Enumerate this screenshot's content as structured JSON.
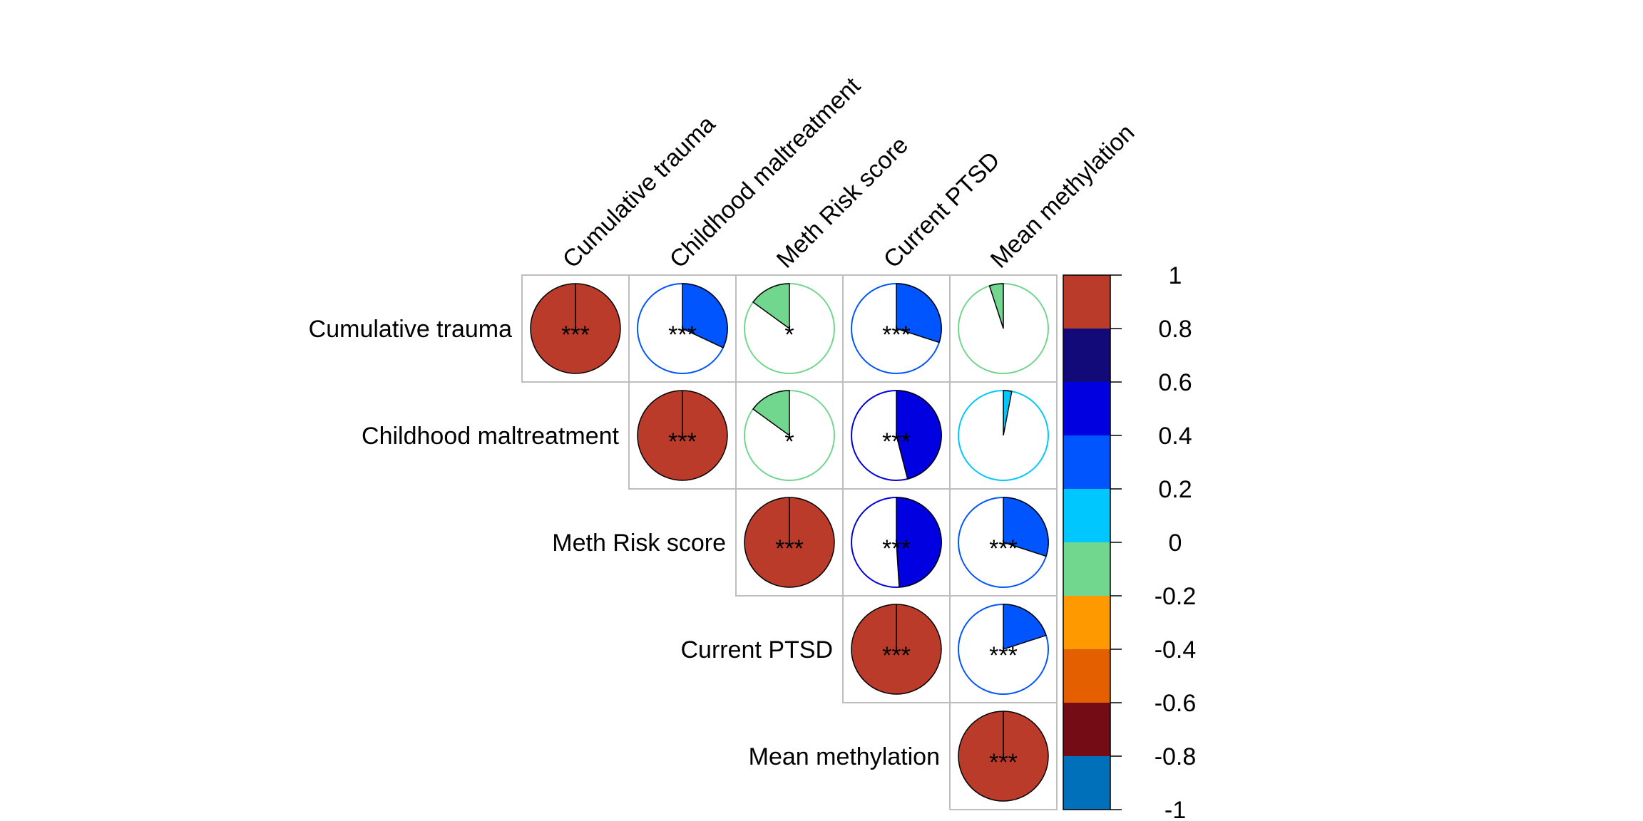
{
  "chart_data": {
    "type": "heatmap",
    "variables": [
      "Cumulative trauma",
      "Childhood maltreatment",
      "Meth Risk score",
      "Current PTSD",
      "Mean methylation"
    ],
    "cells": [
      {
        "row": 0,
        "col": 0,
        "r": 1.0,
        "sig": "***"
      },
      {
        "row": 0,
        "col": 1,
        "r": 0.32,
        "sig": "***"
      },
      {
        "row": 0,
        "col": 2,
        "r": -0.15,
        "sig": "*"
      },
      {
        "row": 0,
        "col": 3,
        "r": 0.3,
        "sig": "***"
      },
      {
        "row": 0,
        "col": 4,
        "r": -0.05,
        "sig": ""
      },
      {
        "row": 1,
        "col": 1,
        "r": 1.0,
        "sig": "***"
      },
      {
        "row": 1,
        "col": 2,
        "r": -0.15,
        "sig": "*"
      },
      {
        "row": 1,
        "col": 3,
        "r": 0.46,
        "sig": "***"
      },
      {
        "row": 1,
        "col": 4,
        "r": 0.03,
        "sig": ""
      },
      {
        "row": 2,
        "col": 2,
        "r": 1.0,
        "sig": "***"
      },
      {
        "row": 2,
        "col": 3,
        "r": 0.49,
        "sig": "***"
      },
      {
        "row": 2,
        "col": 4,
        "r": 0.3,
        "sig": "***"
      },
      {
        "row": 3,
        "col": 3,
        "r": 1.0,
        "sig": "***"
      },
      {
        "row": 3,
        "col": 4,
        "r": 0.2,
        "sig": "***"
      },
      {
        "row": 4,
        "col": 4,
        "r": 1.0,
        "sig": "***"
      }
    ],
    "colorbar": {
      "ticks": [
        "1",
        "0.8",
        "0.6",
        "0.4",
        "0.2",
        "0",
        "-0.2",
        "-0.4",
        "-0.6",
        "-0.8",
        "-1"
      ],
      "bins": [
        {
          "from": 0.8,
          "to": 1.0,
          "color": "#BA3B2A"
        },
        {
          "from": 0.6,
          "to": 0.8,
          "color": "#130A7A"
        },
        {
          "from": 0.4,
          "to": 0.6,
          "color": "#0000E0"
        },
        {
          "from": 0.2,
          "to": 0.4,
          "color": "#0055FF"
        },
        {
          "from": 0.0,
          "to": 0.2,
          "color": "#00C8FF"
        },
        {
          "from": -0.2,
          "to": 0.0,
          "color": "#71D68E"
        },
        {
          "from": -0.4,
          "to": -0.2,
          "color": "#FF9900"
        },
        {
          "from": -0.6,
          "to": -0.4,
          "color": "#E35F00"
        },
        {
          "from": -0.8,
          "to": -0.6,
          "color": "#730C14"
        },
        {
          "from": -1.0,
          "to": -0.8,
          "color": "#0070BA"
        }
      ]
    },
    "grid_color": "#bebebe"
  }
}
